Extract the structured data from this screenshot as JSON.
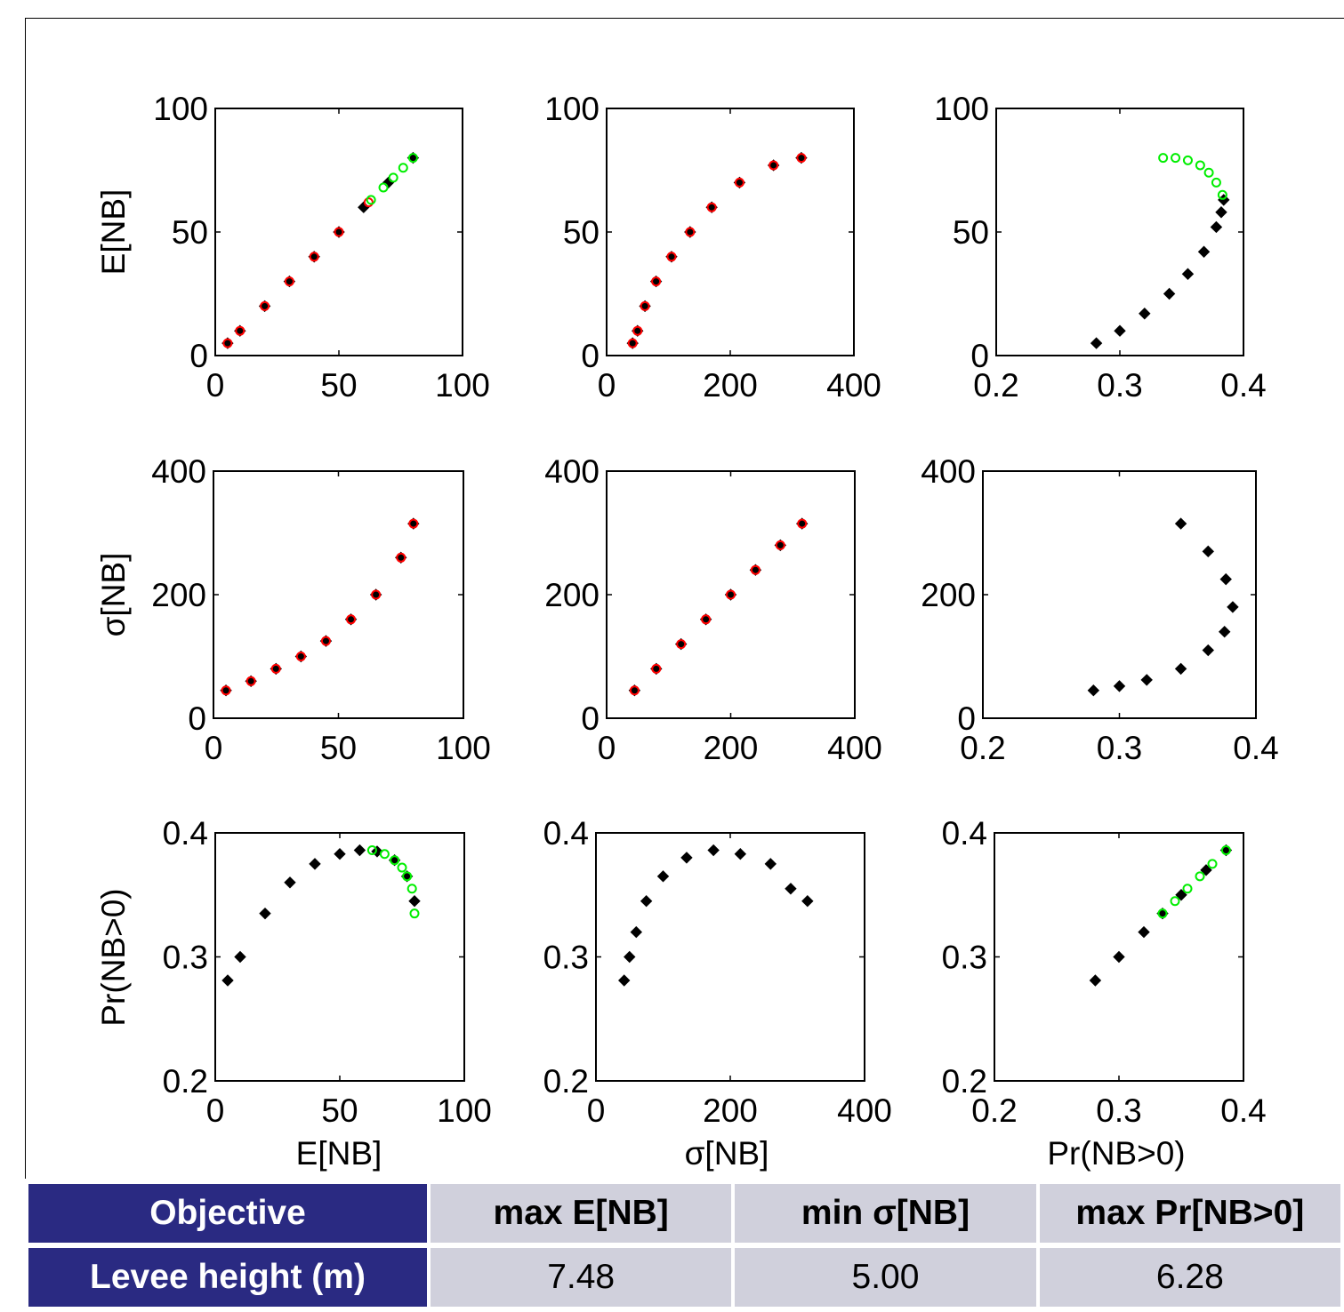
{
  "chart_data": {
    "type": "scatter",
    "layout": "3x3 scatter matrix",
    "row_labels": [
      "E[NB]",
      "σ[NB]",
      "Pr(NB>0)"
    ],
    "col_labels": [
      "E[NB]",
      "σ[NB]",
      "Pr(NB>0)"
    ],
    "colors": {
      "black": "#000000",
      "red": "#ff0000",
      "green": "#00ee00"
    },
    "panels": [
      {
        "id": "r1c1",
        "xlim": [
          0,
          100
        ],
        "ylim": [
          0,
          100
        ],
        "xticks": [
          "0",
          "50",
          "100"
        ],
        "yticks": [
          "0",
          "50",
          "100"
        ],
        "series": [
          {
            "marker": "diamond",
            "color": "#000000",
            "points": [
              [
                5,
                5
              ],
              [
                10,
                10
              ],
              [
                20,
                20
              ],
              [
                30,
                30
              ],
              [
                40,
                40
              ],
              [
                50,
                50
              ],
              [
                60,
                60
              ],
              [
                70,
                70
              ],
              [
                80,
                80
              ]
            ]
          },
          {
            "marker": "circle",
            "color": "#ff0000",
            "points": [
              [
                5,
                5
              ],
              [
                10,
                10
              ],
              [
                20,
                20
              ],
              [
                30,
                30
              ],
              [
                40,
                40
              ],
              [
                50,
                50
              ],
              [
                62,
                62
              ]
            ]
          },
          {
            "marker": "circle",
            "color": "#00ee00",
            "points": [
              [
                63,
                63
              ],
              [
                68,
                68
              ],
              [
                72,
                72
              ],
              [
                76,
                76
              ],
              [
                80,
                80
              ]
            ]
          }
        ]
      },
      {
        "id": "r1c2",
        "xlim": [
          0,
          400
        ],
        "ylim": [
          0,
          100
        ],
        "xticks": [
          "0",
          "200",
          "400"
        ],
        "yticks": [
          "0",
          "50",
          "100"
        ],
        "series": [
          {
            "marker": "diamond",
            "color": "#000000",
            "points": [
              [
                42,
                5
              ],
              [
                50,
                10
              ],
              [
                62,
                20
              ],
              [
                80,
                30
              ],
              [
                105,
                40
              ],
              [
                135,
                50
              ],
              [
                170,
                60
              ],
              [
                215,
                70
              ],
              [
                270,
                77
              ],
              [
                315,
                80
              ]
            ]
          },
          {
            "marker": "circle",
            "color": "#ff0000",
            "points": [
              [
                42,
                5
              ],
              [
                50,
                10
              ],
              [
                62,
                20
              ],
              [
                80,
                30
              ],
              [
                105,
                40
              ],
              [
                135,
                50
              ],
              [
                170,
                60
              ],
              [
                215,
                70
              ],
              [
                270,
                77
              ],
              [
                315,
                80
              ]
            ]
          }
        ]
      },
      {
        "id": "r1c3",
        "xlim": [
          0.2,
          0.4
        ],
        "ylim": [
          0,
          100
        ],
        "xticks": [
          "0.2",
          "0.3",
          "0.4"
        ],
        "yticks": [
          "0",
          "50",
          "100"
        ],
        "series": [
          {
            "marker": "diamond",
            "color": "#000000",
            "points": [
              [
                0.281,
                5
              ],
              [
                0.3,
                10
              ],
              [
                0.32,
                17
              ],
              [
                0.34,
                25
              ],
              [
                0.355,
                33
              ],
              [
                0.368,
                42
              ],
              [
                0.378,
                52
              ],
              [
                0.382,
                58
              ],
              [
                0.384,
                63
              ]
            ]
          },
          {
            "marker": "circle",
            "color": "#00ee00",
            "points": [
              [
                0.335,
                80
              ],
              [
                0.345,
                80
              ],
              [
                0.355,
                79
              ],
              [
                0.365,
                77
              ],
              [
                0.372,
                74
              ],
              [
                0.378,
                70
              ],
              [
                0.383,
                65
              ]
            ]
          }
        ]
      },
      {
        "id": "r2c1",
        "xlim": [
          0,
          100
        ],
        "ylim": [
          0,
          400
        ],
        "xticks": [
          "0",
          "50",
          "100"
        ],
        "yticks": [
          "0",
          "200",
          "400"
        ],
        "series": [
          {
            "marker": "diamond",
            "color": "#000000",
            "points": [
              [
                5,
                45
              ],
              [
                15,
                60
              ],
              [
                25,
                80
              ],
              [
                35,
                100
              ],
              [
                45,
                125
              ],
              [
                55,
                160
              ],
              [
                65,
                200
              ],
              [
                75,
                260
              ],
              [
                80,
                315
              ]
            ]
          },
          {
            "marker": "circle",
            "color": "#ff0000",
            "points": [
              [
                5,
                45
              ],
              [
                15,
                60
              ],
              [
                25,
                80
              ],
              [
                35,
                100
              ],
              [
                45,
                125
              ],
              [
                55,
                160
              ],
              [
                65,
                200
              ],
              [
                75,
                260
              ],
              [
                80,
                315
              ]
            ]
          }
        ]
      },
      {
        "id": "r2c2",
        "xlim": [
          0,
          400
        ],
        "ylim": [
          0,
          400
        ],
        "xticks": [
          "0",
          "200",
          "400"
        ],
        "yticks": [
          "0",
          "200",
          "400"
        ],
        "series": [
          {
            "marker": "diamond",
            "color": "#000000",
            "points": [
              [
                45,
                45
              ],
              [
                80,
                80
              ],
              [
                120,
                120
              ],
              [
                160,
                160
              ],
              [
                200,
                200
              ],
              [
                240,
                240
              ],
              [
                280,
                280
              ],
              [
                315,
                315
              ]
            ]
          },
          {
            "marker": "circle",
            "color": "#ff0000",
            "points": [
              [
                45,
                45
              ],
              [
                80,
                80
              ],
              [
                120,
                120
              ],
              [
                160,
                160
              ],
              [
                200,
                200
              ],
              [
                240,
                240
              ],
              [
                280,
                280
              ],
              [
                315,
                315
              ]
            ]
          }
        ]
      },
      {
        "id": "r2c3",
        "xlim": [
          0.2,
          0.4
        ],
        "ylim": [
          0,
          400
        ],
        "xticks": [
          "0.2",
          "0.3",
          "0.4"
        ],
        "yticks": [
          "0",
          "200",
          "400"
        ],
        "series": [
          {
            "marker": "diamond",
            "color": "#000000",
            "points": [
              [
                0.281,
                45
              ],
              [
                0.3,
                52
              ],
              [
                0.32,
                62
              ],
              [
                0.345,
                80
              ],
              [
                0.365,
                110
              ],
              [
                0.377,
                140
              ],
              [
                0.383,
                180
              ],
              [
                0.378,
                225
              ],
              [
                0.365,
                270
              ],
              [
                0.345,
                315
              ]
            ]
          }
        ]
      },
      {
        "id": "r3c1",
        "xlim": [
          0,
          100
        ],
        "ylim": [
          0.2,
          0.4
        ],
        "xticks": [
          "0",
          "50",
          "100"
        ],
        "yticks": [
          "0.2",
          "0.3",
          "0.4"
        ],
        "series": [
          {
            "marker": "diamond",
            "color": "#000000",
            "points": [
              [
                5,
                0.281
              ],
              [
                10,
                0.3
              ],
              [
                20,
                0.335
              ],
              [
                30,
                0.36
              ],
              [
                40,
                0.375
              ],
              [
                50,
                0.383
              ],
              [
                58,
                0.386
              ],
              [
                65,
                0.385
              ],
              [
                72,
                0.378
              ],
              [
                77,
                0.365
              ],
              [
                80,
                0.345
              ]
            ]
          },
          {
            "marker": "circle",
            "color": "#00ee00",
            "points": [
              [
                63,
                0.386
              ],
              [
                68,
                0.383
              ],
              [
                72,
                0.378
              ],
              [
                75,
                0.372
              ],
              [
                77,
                0.365
              ],
              [
                79,
                0.355
              ],
              [
                80,
                0.335
              ]
            ]
          }
        ]
      },
      {
        "id": "r3c2",
        "xlim": [
          0,
          400
        ],
        "ylim": [
          0.2,
          0.4
        ],
        "xticks": [
          "0",
          "200",
          "400"
        ],
        "yticks": [
          "0.2",
          "0.3",
          "0.4"
        ],
        "series": [
          {
            "marker": "diamond",
            "color": "#000000",
            "points": [
              [
                42,
                0.281
              ],
              [
                50,
                0.3
              ],
              [
                60,
                0.32
              ],
              [
                75,
                0.345
              ],
              [
                100,
                0.365
              ],
              [
                135,
                0.38
              ],
              [
                175,
                0.386
              ],
              [
                215,
                0.383
              ],
              [
                260,
                0.375
              ],
              [
                290,
                0.355
              ],
              [
                315,
                0.345
              ]
            ]
          }
        ]
      },
      {
        "id": "r3c3",
        "xlim": [
          0.2,
          0.4
        ],
        "ylim": [
          0.2,
          0.4
        ],
        "xticks": [
          "0.2",
          "0.3",
          "0.4"
        ],
        "yticks": [
          "0.2",
          "0.3",
          "0.4"
        ],
        "series": [
          {
            "marker": "diamond",
            "color": "#000000",
            "points": [
              [
                0.281,
                0.281
              ],
              [
                0.3,
                0.3
              ],
              [
                0.32,
                0.32
              ],
              [
                0.335,
                0.335
              ],
              [
                0.35,
                0.35
              ],
              [
                0.37,
                0.37
              ],
              [
                0.386,
                0.386
              ]
            ]
          },
          {
            "marker": "circle",
            "color": "#00ee00",
            "points": [
              [
                0.335,
                0.335
              ],
              [
                0.345,
                0.345
              ],
              [
                0.355,
                0.355
              ],
              [
                0.365,
                0.365
              ],
              [
                0.375,
                0.375
              ],
              [
                0.386,
                0.386
              ]
            ]
          }
        ]
      }
    ]
  },
  "table": {
    "header": [
      "Objective",
      "max E[NB]",
      "min σ[NB]",
      "max Pr[NB>0]"
    ],
    "row": [
      "Levee height (m)",
      "7.48",
      "5.00",
      "6.28"
    ]
  }
}
